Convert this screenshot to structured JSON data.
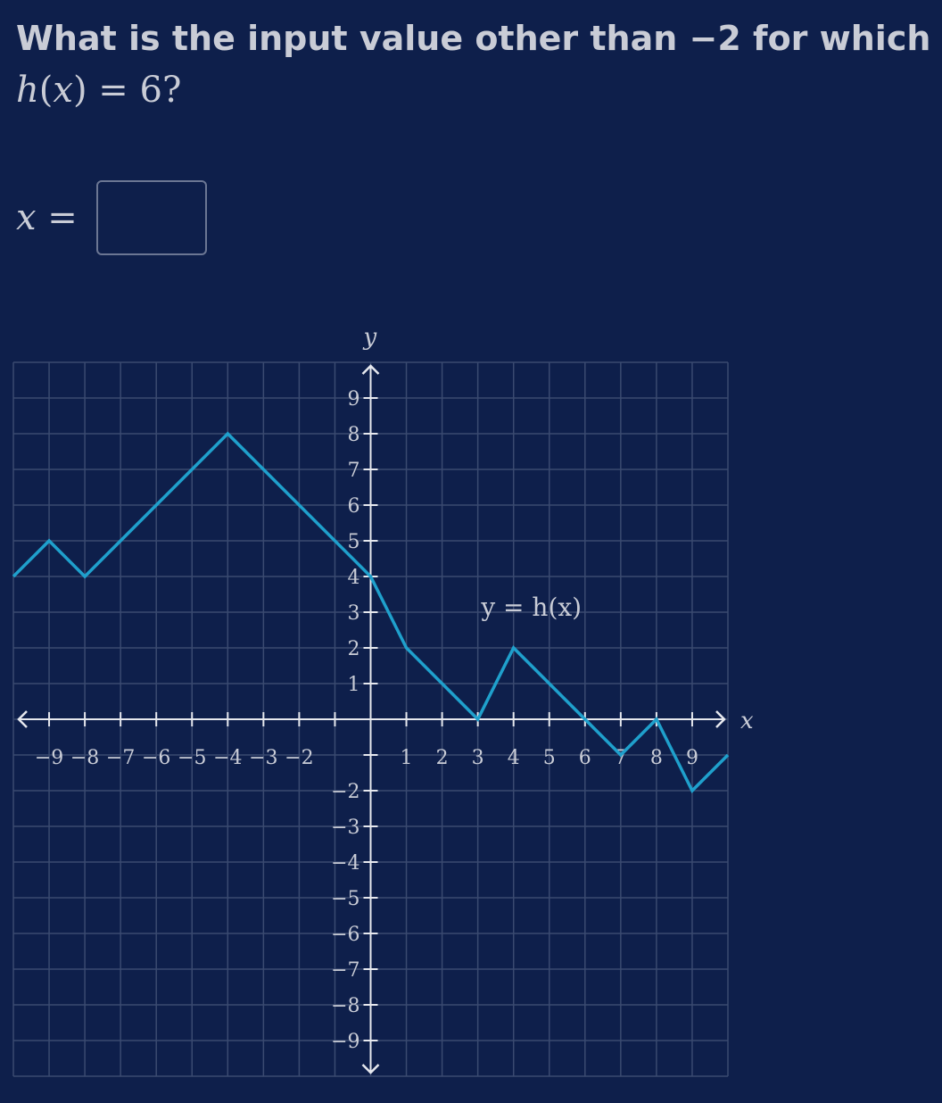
{
  "question": {
    "text": "What is the input value other than −2 for which",
    "math_func": "h",
    "math_var": "x",
    "math_rest": " = 6?"
  },
  "answer": {
    "var": "x",
    "equals": " =",
    "value": "",
    "placeholder": ""
  },
  "chart_data": {
    "type": "line",
    "xlabel": "x",
    "ylabel": "y",
    "xlim": [
      -10,
      10
    ],
    "ylim": [
      -10,
      10
    ],
    "grid": true,
    "x_ticks": [
      -9,
      -8,
      -7,
      -6,
      -5,
      -4,
      -3,
      -2,
      1,
      2,
      3,
      4,
      5,
      6,
      7,
      8,
      9
    ],
    "y_ticks": [
      9,
      8,
      7,
      6,
      5,
      4,
      3,
      2,
      1,
      -2,
      -3,
      -4,
      -5,
      -6,
      -7,
      -8,
      -9
    ],
    "curve_label": "y = h(x)",
    "series": [
      {
        "color": "#1fa0cc",
        "points": [
          [
            -10,
            4
          ],
          [
            -9,
            5
          ],
          [
            -8,
            4
          ],
          [
            -4,
            8
          ],
          [
            0,
            4
          ],
          [
            1,
            2
          ],
          [
            3,
            0
          ],
          [
            4,
            2
          ],
          [
            7,
            -1
          ],
          [
            8,
            0
          ],
          [
            9,
            -2
          ],
          [
            10,
            -1
          ]
        ]
      }
    ]
  }
}
